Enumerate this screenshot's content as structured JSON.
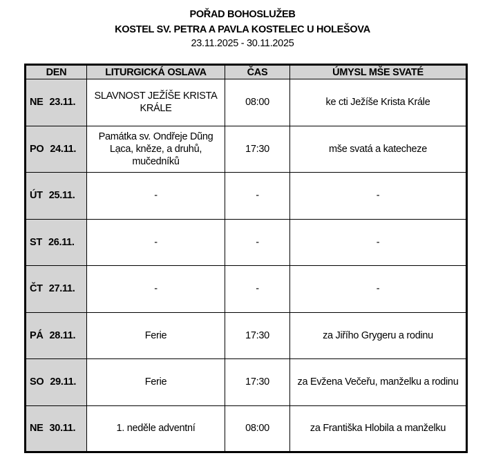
{
  "header": {
    "title": "POŘAD BOHOSLUŽEB",
    "church": "KOSTEL SV. PETRA A PAVLA KOSTELEC U HOLEŠOVA",
    "date_range": "23.11.2025 - 30.11.2025"
  },
  "table": {
    "columns": [
      "DEN",
      "LITURGICKÁ OSLAVA",
      "ČAS",
      "ÚMYSL MŠE SVATÉ"
    ],
    "rows": [
      {
        "day": "NE",
        "date": "23.11.",
        "celebration": "SLAVNOST JEŽÍŠE KRISTA KRÁLE",
        "time": "08:00",
        "intention": "ke cti Ježíše Krista Krále"
      },
      {
        "day": "PO",
        "date": "24.11.",
        "celebration": "Památka sv. Ondřeje Dũng Lạca, kněze, a druhů, mučedníků",
        "time": "17:30",
        "intention": "mše svatá a katecheze"
      },
      {
        "day": "ÚT",
        "date": "25.11.",
        "celebration": "-",
        "time": "-",
        "intention": "-"
      },
      {
        "day": "ST",
        "date": "26.11.",
        "celebration": "-",
        "time": "-",
        "intention": "-"
      },
      {
        "day": "ČT",
        "date": "27.11.",
        "celebration": "-",
        "time": "-",
        "intention": "-"
      },
      {
        "day": "PÁ",
        "date": "28.11.",
        "celebration": "Ferie",
        "time": "17:30",
        "intention": "za Jiřího Grygeru a rodinu"
      },
      {
        "day": "SO",
        "date": "29.11.",
        "celebration": "Ferie",
        "time": "17:30",
        "intention": "za Evžena Večeřu, manželku a rodinu"
      },
      {
        "day": "NE",
        "date": "30.11.",
        "celebration": "1. neděle adventní",
        "time": "08:00",
        "intention": "za Františka Hlobila a manželku"
      }
    ]
  },
  "colors": {
    "header_fill": "#d4d4d4",
    "border": "#000000"
  }
}
